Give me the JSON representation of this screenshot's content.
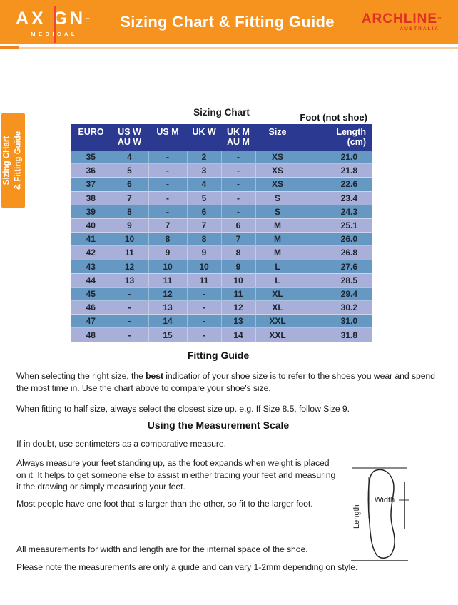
{
  "header": {
    "brand": {
      "name": "AXIGN",
      "display_left": "AX",
      "display_right": "GN",
      "tm": "™",
      "sub": "MEDICAL"
    },
    "title": "Sizing Chart & Fitting Guide",
    "partner": {
      "name": "ARCHLINE",
      "tm": "™",
      "sub": "AUSTRALIA"
    }
  },
  "side_tab": {
    "line1": "Sizing CHart",
    "line2": "& Fitting Guide"
  },
  "sizing_chart": {
    "title": "Sizing Chart",
    "note": "Foot (not shoe)",
    "columns": [
      "EURO",
      "US W\nAU W",
      "US M",
      "UK W",
      "UK M\nAU M",
      "Size",
      "Length\n(cm)"
    ],
    "rows": [
      [
        "35",
        "4",
        "-",
        "2",
        "-",
        "XS",
        "21.0"
      ],
      [
        "36",
        "5",
        "-",
        "3",
        "-",
        "XS",
        "21.8"
      ],
      [
        "37",
        "6",
        "-",
        "4",
        "-",
        "XS",
        "22.6"
      ],
      [
        "38",
        "7",
        "-",
        "5",
        "-",
        "S",
        "23.4"
      ],
      [
        "39",
        "8",
        "-",
        "6",
        "-",
        "S",
        "24.3"
      ],
      [
        "40",
        "9",
        "7",
        "7",
        "6",
        "M",
        "25.1"
      ],
      [
        "41",
        "10",
        "8",
        "8",
        "7",
        "M",
        "26.0"
      ],
      [
        "42",
        "11",
        "9",
        "9",
        "8",
        "M",
        "26.8"
      ],
      [
        "43",
        "12",
        "10",
        "10",
        "9",
        "L",
        "27.6"
      ],
      [
        "44",
        "13",
        "11",
        "11",
        "10",
        "L",
        "28.5"
      ],
      [
        "45",
        "-",
        "12",
        "-",
        "11",
        "XL",
        "29.4"
      ],
      [
        "46",
        "-",
        "13",
        "-",
        "12",
        "XL",
        "30.2"
      ],
      [
        "47",
        "-",
        "14",
        "-",
        "13",
        "XXL",
        "31.0"
      ],
      [
        "48",
        "-",
        "15",
        "-",
        "14",
        "XXL",
        "31.8"
      ]
    ]
  },
  "fitting_guide": {
    "heading": "Fitting Guide",
    "p1_before": "When selecting the right size, the ",
    "p1_bold": "best",
    "p1_after": " indicatior of your shoe size is to refer to the shoes you wear and spend the most time in. Use the chart above to compare your shoe's size.",
    "p2": "When fitting to half size, always select the closest size up. e.g. If Size 8.5, follow Size 9."
  },
  "measurement": {
    "heading": "Using the Measurement Scale",
    "p1": "If in doubt, use centimeters as a comparative measure.",
    "p2": "Always measure your feet standing up, as the foot expands when weight is placed on it. It helps to get someone else to assist in either tracing your feet and measuring it the drawing or simply measuring your feet.",
    "p3": "Most people have one foot that is larger than the other, so fit to the larger foot.",
    "p4": "All measurements for width and length are for the internal space of the shoe.",
    "p5": "Please note the measurements are only a guide and can vary 1-2mm depending on style.",
    "diagram": {
      "width_label": "Width",
      "length_label": "Length"
    }
  },
  "colors": {
    "header_orange": "#F6921E",
    "underline_peach": "#F8CE9C",
    "table_header_navy": "#2B3990",
    "row_blue": "#6598C3",
    "row_periwinkle": "#A8B0D9",
    "archline_red": "#E03127",
    "axign_line_red": "#EF4136"
  }
}
